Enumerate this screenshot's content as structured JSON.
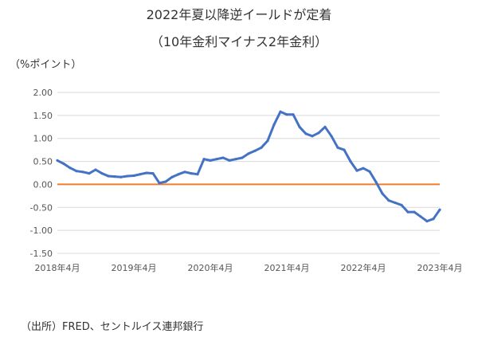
{
  "chart_data": {
    "type": "line",
    "title": "2022年夏以降逆イールドが定着",
    "subtitle": "（10年金利マイナス2年金利）",
    "ylabel": "（%ポイント）",
    "source": "（出所）FRED、セントルイス連邦銀行",
    "ylim": [
      -1.5,
      2.0
    ],
    "yticks": [
      "2.00",
      "1.50",
      "1.00",
      "0.50",
      "0.00",
      "-0.50",
      "-1.00",
      "-1.50"
    ],
    "xlim": [
      "2018-04",
      "2023-04"
    ],
    "xticks": [
      "2018年4月",
      "2019年4月",
      "2020年4月",
      "2021年4月",
      "2022年4月",
      "2023年4月"
    ],
    "grid": true,
    "colors": {
      "line": "#4472c4",
      "zero": "#ed7d31"
    },
    "series": [
      {
        "x": [
          "2018-04",
          "2018-05",
          "2018-06",
          "2018-07",
          "2018-08",
          "2018-09",
          "2018-10",
          "2018-11",
          "2018-12",
          "2019-01",
          "2019-02",
          "2019-03",
          "2019-04",
          "2019-05",
          "2019-06",
          "2019-07",
          "2019-08",
          "2019-09",
          "2019-10",
          "2019-11",
          "2019-12",
          "2020-01",
          "2020-02",
          "2020-03",
          "2020-04",
          "2020-05",
          "2020-06",
          "2020-07",
          "2020-08",
          "2020-09",
          "2020-10",
          "2020-11",
          "2020-12",
          "2021-01",
          "2021-02",
          "2021-03",
          "2021-04",
          "2021-05",
          "2021-06",
          "2021-07",
          "2021-08",
          "2021-09",
          "2021-10",
          "2021-11",
          "2021-12",
          "2022-01",
          "2022-02",
          "2022-03",
          "2022-04",
          "2022-05",
          "2022-06",
          "2022-07",
          "2022-08",
          "2022-09",
          "2022-10",
          "2022-11",
          "2022-12",
          "2023-01",
          "2023-02",
          "2023-03",
          "2023-04"
        ],
        "values": [
          0.52,
          0.45,
          0.36,
          0.29,
          0.27,
          0.24,
          0.32,
          0.24,
          0.18,
          0.17,
          0.16,
          0.18,
          0.19,
          0.22,
          0.25,
          0.24,
          0.03,
          0.06,
          0.16,
          0.22,
          0.27,
          0.24,
          0.22,
          0.55,
          0.52,
          0.55,
          0.58,
          0.52,
          0.55,
          0.58,
          0.67,
          0.73,
          0.8,
          0.95,
          1.3,
          1.58,
          1.52,
          1.52,
          1.25,
          1.1,
          1.05,
          1.12,
          1.25,
          1.05,
          0.8,
          0.75,
          0.5,
          0.3,
          0.35,
          0.28,
          0.05,
          -0.2,
          -0.35,
          -0.4,
          -0.45,
          -0.6,
          -0.6,
          -0.7,
          -0.8,
          -0.75,
          -0.55
        ]
      }
    ]
  }
}
